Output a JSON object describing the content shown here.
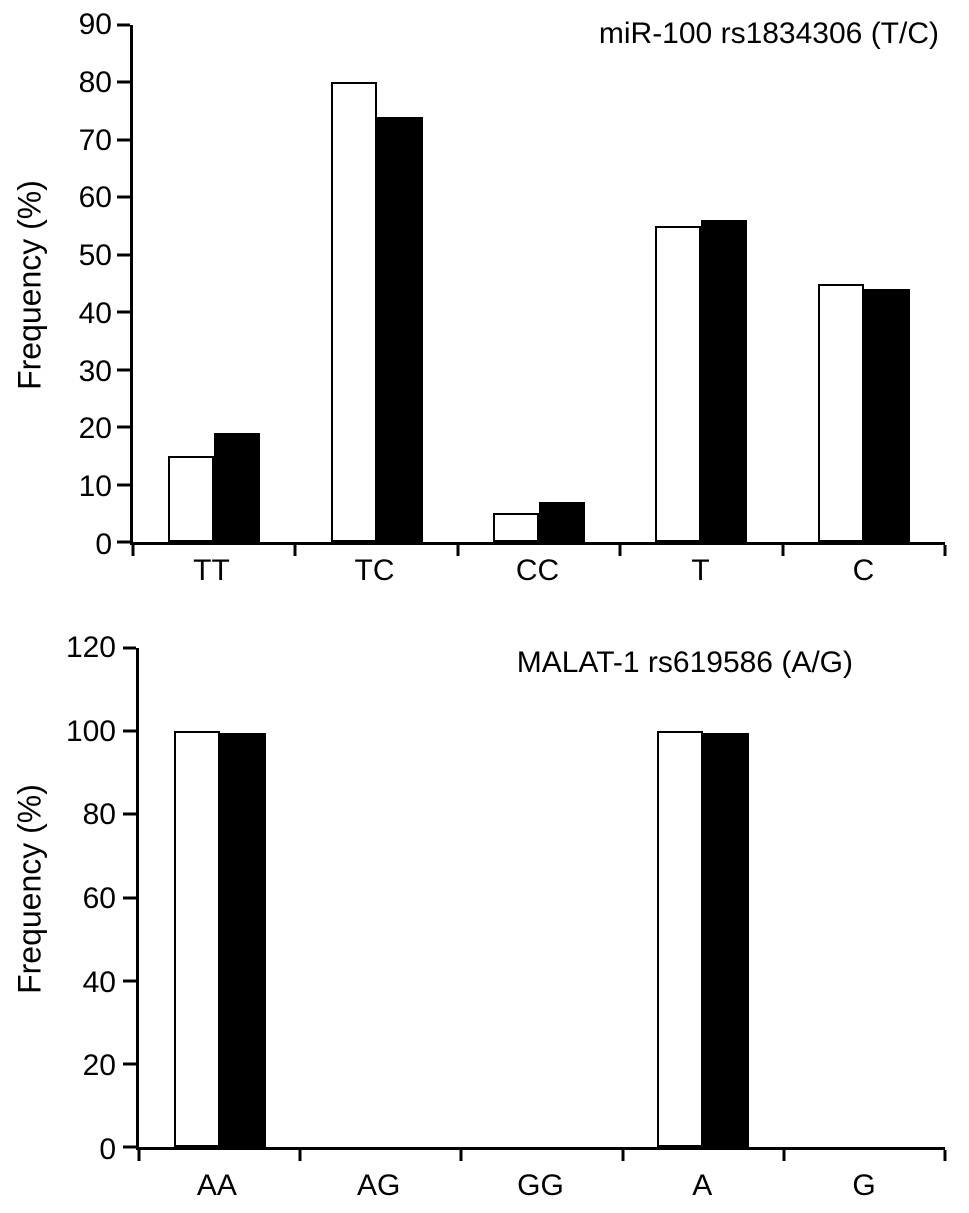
{
  "figure": {
    "background": "#ffffff",
    "axis_color": "#000000"
  },
  "chart_data": [
    {
      "type": "bar",
      "title": "miR-100 rs1834306 (T/C)",
      "ylabel": "Frequency (%)",
      "categories": [
        "TT",
        "TC",
        "CC",
        "T",
        "C"
      ],
      "series": [
        {
          "name": "open",
          "color": "#ffffff",
          "values": [
            15,
            80,
            5,
            55,
            45
          ]
        },
        {
          "name": "filled",
          "color": "#000000",
          "values": [
            19,
            74,
            7,
            56,
            44
          ]
        }
      ],
      "ylim": [
        0,
        90
      ],
      "ystep": 10,
      "grid": false,
      "legend": "none"
    },
    {
      "type": "bar",
      "title": "MALAT-1 rs619586 (A/G)",
      "ylabel": "Frequency (%)",
      "categories": [
        "AA",
        "AG",
        "GG",
        "A",
        "G"
      ],
      "series": [
        {
          "name": "open",
          "color": "#ffffff",
          "values": [
            100,
            0,
            0,
            100,
            0
          ]
        },
        {
          "name": "filled",
          "color": "#000000",
          "values": [
            99.5,
            0,
            0,
            99.5,
            0
          ]
        }
      ],
      "ylim": [
        0,
        120
      ],
      "ystep": 20,
      "grid": false,
      "legend": "none"
    }
  ]
}
